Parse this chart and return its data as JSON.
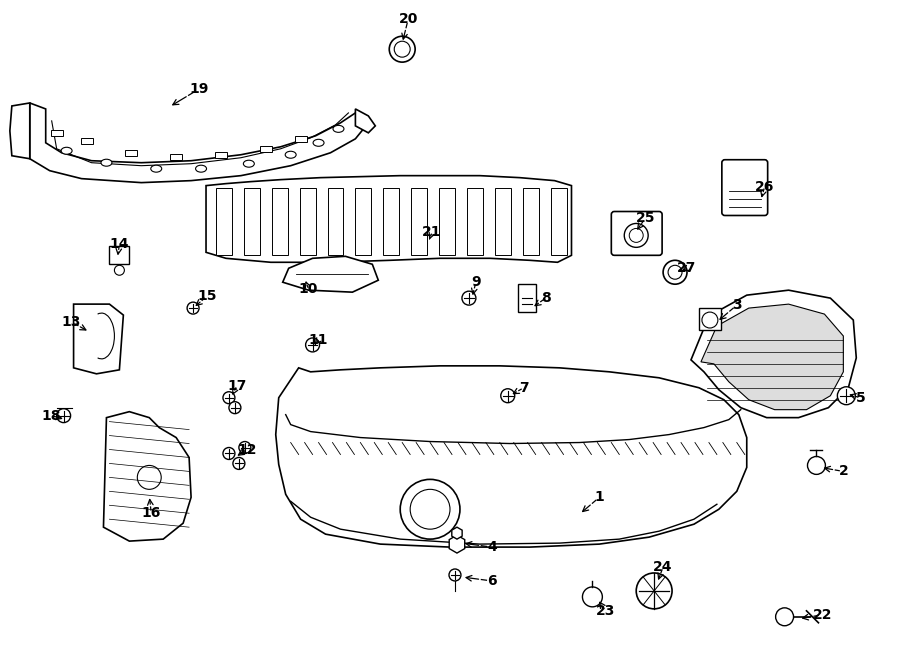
{
  "background_color": "#ffffff",
  "line_color": "#000000",
  "labels": [
    [
      "1",
      600,
      498,
      580,
      515
    ],
    [
      "2",
      845,
      472,
      822,
      468
    ],
    [
      "3",
      738,
      305,
      718,
      322
    ],
    [
      "4",
      492,
      548,
      462,
      544
    ],
    [
      "5",
      862,
      398,
      848,
      394
    ],
    [
      "6",
      492,
      582,
      462,
      578
    ],
    [
      "7",
      524,
      388,
      510,
      396
    ],
    [
      "8",
      546,
      298,
      532,
      308
    ],
    [
      "9",
      476,
      282,
      472,
      298
    ],
    [
      "10",
      308,
      289,
      304,
      278
    ],
    [
      "11",
      318,
      340,
      314,
      345
    ],
    [
      "12",
      246,
      450,
      234,
      458
    ],
    [
      "13",
      70,
      322,
      88,
      332
    ],
    [
      "14",
      118,
      244,
      116,
      258
    ],
    [
      "15",
      206,
      296,
      192,
      308
    ],
    [
      "16",
      150,
      514,
      148,
      496
    ],
    [
      "17",
      236,
      386,
      230,
      398
    ],
    [
      "18",
      50,
      416,
      64,
      420
    ],
    [
      "19",
      198,
      88,
      168,
      106
    ],
    [
      "20",
      408,
      18,
      402,
      42
    ],
    [
      "21",
      432,
      232,
      428,
      242
    ],
    [
      "22",
      824,
      616,
      800,
      620
    ],
    [
      "23",
      606,
      612,
      598,
      600
    ],
    [
      "24",
      664,
      568,
      658,
      584
    ],
    [
      "25",
      646,
      218,
      636,
      232
    ],
    [
      "26",
      766,
      186,
      762,
      200
    ],
    [
      "27",
      688,
      268,
      680,
      272
    ]
  ]
}
